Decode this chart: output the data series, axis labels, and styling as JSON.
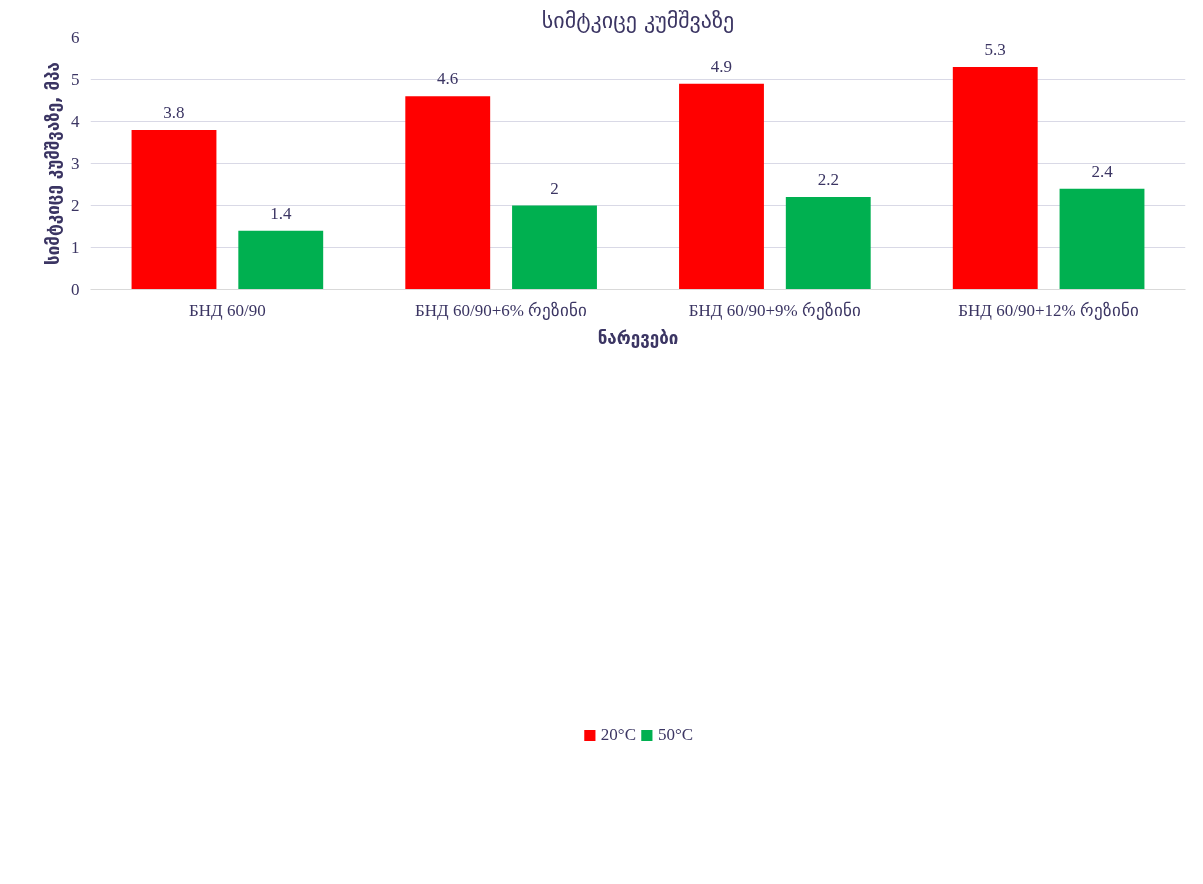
{
  "chart_data": {
    "type": "bar",
    "title": "სიმტკიცე კუმშვაზე",
    "xlabel": "ნარევები",
    "ylabel": "სიმტკიცე კუმშვაზე, მპა",
    "categories": [
      "БНД 60/90",
      "БНД 60/90+6% რეზინი",
      "БНД 60/90+9% რეზინი",
      "БНД 60/90+12% რეზინი"
    ],
    "series": [
      {
        "name": "20°C",
        "color": "#ff0000",
        "values": [
          3.8,
          4.6,
          4.9,
          5.3
        ]
      },
      {
        "name": "50°C",
        "color": "#00b050",
        "values": [
          1.4,
          2,
          2.2,
          2.4
        ]
      }
    ],
    "ylim": [
      0,
      6
    ],
    "yticks": [
      0,
      1,
      2,
      3,
      4,
      5,
      6
    ],
    "grid": "y",
    "legend": "bottom",
    "data_labels": true
  }
}
